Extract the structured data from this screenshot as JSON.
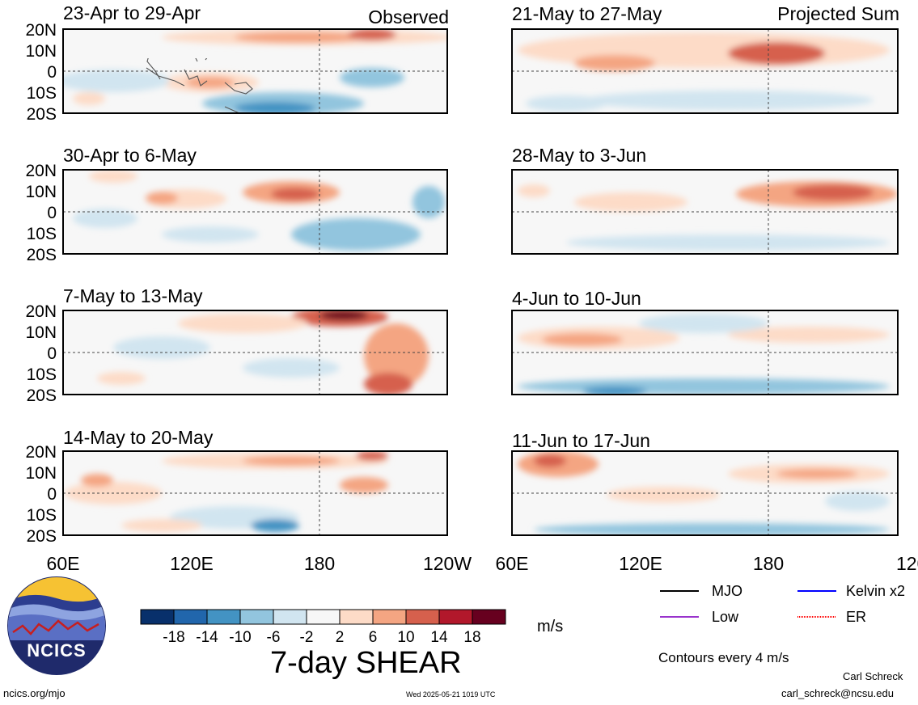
{
  "panels_left_header": "Observed",
  "panels_right_header": "Projected Sum",
  "panels": [
    {
      "id": "p1",
      "title": "23-Apr to 29-Apr",
      "column": "observed"
    },
    {
      "id": "p2",
      "title": "30-Apr to 6-May",
      "column": "observed"
    },
    {
      "id": "p3",
      "title": "7-May to 13-May",
      "column": "observed"
    },
    {
      "id": "p4",
      "title": "14-May to 20-May",
      "column": "observed"
    },
    {
      "id": "p5",
      "title": "21-May to 27-May",
      "column": "projected"
    },
    {
      "id": "p6",
      "title": "28-May to 3-Jun",
      "column": "projected"
    },
    {
      "id": "p7",
      "title": "4-Jun to 10-Jun",
      "column": "projected"
    },
    {
      "id": "p8",
      "title": "11-Jun to 17-Jun",
      "column": "projected"
    }
  ],
  "lat_labels": [
    "20N",
    "10N",
    "0",
    "10S",
    "20S"
  ],
  "lon_labels": [
    "60E",
    "120E",
    "180",
    "120W"
  ],
  "colorbar": {
    "ticks": [
      "-18",
      "-14",
      "-10",
      "-6",
      "-2",
      "2",
      "6",
      "10",
      "14",
      "18"
    ],
    "colors": [
      "#08306b",
      "#2166ac",
      "#4393c3",
      "#92c5de",
      "#d1e5f0",
      "#f7f7f7",
      "#fddbc7",
      "#f4a582",
      "#d6604d",
      "#b2182b",
      "#67001f"
    ],
    "units": "m/s"
  },
  "main_title": "7-day SHEAR",
  "legend": [
    {
      "label": "MJO",
      "color": "#000000"
    },
    {
      "label": "Kelvin x2",
      "color": "#0000ff"
    },
    {
      "label": "Low",
      "color": "#9933cc"
    },
    {
      "label": "ER",
      "color": "#ff0000"
    }
  ],
  "contours_note": "Contours every 4 m/s",
  "logo_text": "NCICS",
  "footer_left": "ncics.org/mjo",
  "footer_center": "Wed 2025-05-21 1019 UTC",
  "author_name": "Carl Schreck",
  "author_email": "carl_schreck@ncsu.edu"
}
